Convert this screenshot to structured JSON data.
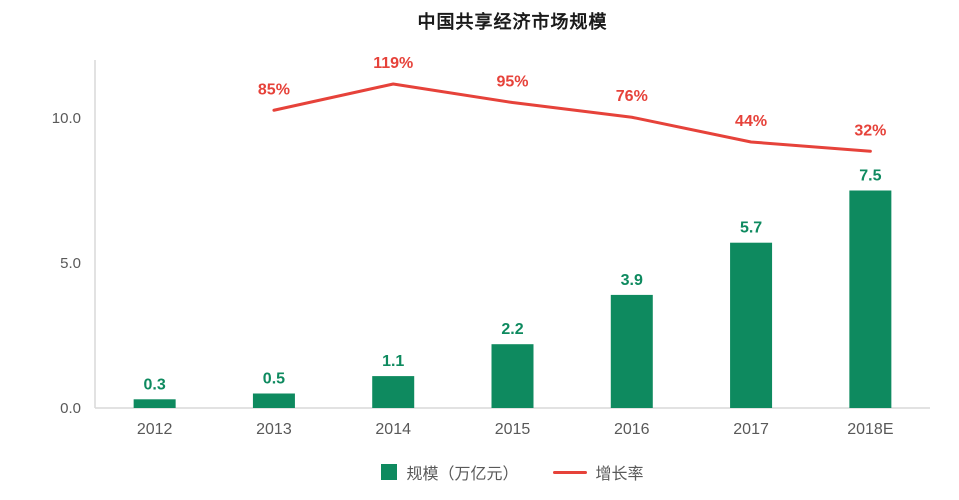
{
  "chart_data": {
    "type": "bar+line",
    "title": "中国共享经济市场规模",
    "categories": [
      "2012",
      "2013",
      "2014",
      "2015",
      "2016",
      "2017",
      "2018E"
    ],
    "series": [
      {
        "name": "规模（万亿元）",
        "type": "bar",
        "color": "#0E8A5F",
        "values": [
          0.3,
          0.5,
          1.1,
          2.2,
          3.9,
          5.7,
          7.5
        ],
        "labels": [
          "0.3",
          "0.5",
          "1.1",
          "2.2",
          "3.9",
          "5.7",
          "7.5"
        ]
      },
      {
        "name": "增长率",
        "type": "line",
        "axis": "secondary",
        "unit": "%",
        "color": "#E6423A",
        "values": [
          null,
          85,
          119,
          95,
          76,
          44,
          32
        ],
        "labels": [
          null,
          "85%",
          "119%",
          "95%",
          "76%",
          "44%",
          "32%"
        ]
      }
    ],
    "ylim": [
      0,
      12
    ],
    "yticks": [
      {
        "value": 0,
        "label": "0.0"
      },
      {
        "value": 5,
        "label": "5.0"
      },
      {
        "value": 10,
        "label": "10.0"
      }
    ],
    "y2lim": [
      -300,
      150
    ],
    "grid": false,
    "legend_position": "bottom",
    "axis_color": "#d9d9d9",
    "text_color": "#595959",
    "background": "#ffffff"
  }
}
